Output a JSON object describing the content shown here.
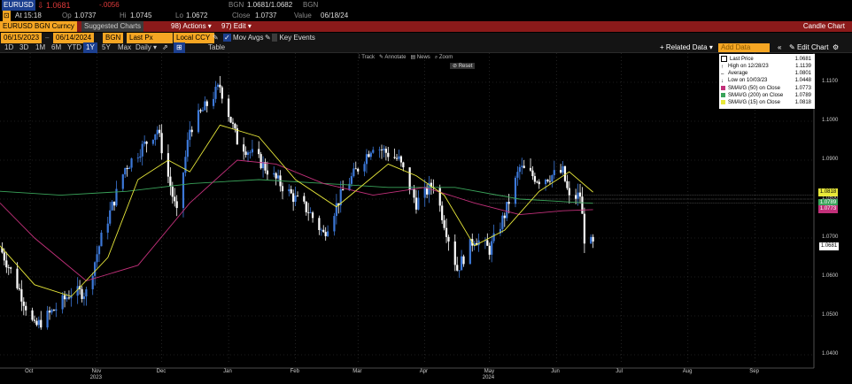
{
  "header": {
    "ticker": "EURUSD",
    "last": "1.0681",
    "change": "-.0056",
    "source": "BGN",
    "bid_ask": "1.0681/1.0682",
    "source2": "BGN",
    "time_label": "At 15:18",
    "open_label": "Op",
    "open": "1.0737",
    "high_label": "Hi",
    "high": "1.0745",
    "low_label": "Lo",
    "low": "1.0672",
    "close_label": "Close",
    "close": "1.0737",
    "value_label": "Value",
    "value_date": "06/18/24"
  },
  "toolbar": {
    "security": "EURUSD BGN Curncy",
    "suggested": "Suggested Charts",
    "actions": "Actions",
    "actions_num": "98)",
    "edit": "Edit",
    "edit_num": "97)",
    "chart_type": "Candle Chart"
  },
  "controls": {
    "start_date": "06/15/2023",
    "end_date": "06/14/2024",
    "source": "BGN",
    "field": "Last Px",
    "currency": "Local CCY",
    "mov_avgs": "Mov Avgs",
    "key_events": "Key Events",
    "related_data": "Related Data",
    "add_data": "Add Data",
    "edit_chart": "Edit Chart"
  },
  "periods": {
    "items": [
      "1D",
      "3D",
      "1M",
      "6M",
      "YTD",
      "1Y",
      "5Y",
      "Max"
    ],
    "selected": "1Y",
    "frequency": "Daily",
    "table": "Table"
  },
  "chart_tools": {
    "track": "Track",
    "annotate": "Annotate",
    "news": "News",
    "zoom": "Zoom",
    "reset": "Reset"
  },
  "legend": {
    "rows": [
      {
        "label": "Last Price",
        "value": "1.0681",
        "color": "#ffffff"
      },
      {
        "label": "High on 12/28/23",
        "value": "1.1139",
        "color": "#ffffff"
      },
      {
        "label": "Average",
        "value": "1.0801",
        "color": "#ffffff"
      },
      {
        "label": "Low on 10/03/23",
        "value": "1.0448",
        "color": "#ffffff"
      },
      {
        "label": "SMAVG (50) on Close",
        "value": "1.0773",
        "color": "#c2307a"
      },
      {
        "label": "SMAVG (200) on Close",
        "value": "1.0789",
        "color": "#3aa35a"
      },
      {
        "label": "SMAVG (15) on Close",
        "value": "1.0818",
        "color": "#e8e83a"
      }
    ]
  },
  "chart_data": {
    "type": "candlestick",
    "ylim": [
      1.0375,
      1.1175
    ],
    "y_ticks": [
      "1.1100",
      "1.1000",
      "1.0900",
      "1.0800",
      "1.0700",
      "1.0600",
      "1.0500",
      "1.0400"
    ],
    "y_tick_values": [
      1.11,
      1.1,
      1.09,
      1.08,
      1.07,
      1.06,
      1.05,
      1.04
    ],
    "x_ticks": [
      "Oct",
      "Nov",
      "Dec",
      "Jan",
      "Feb",
      "Mar",
      "Apr",
      "May",
      "Jun",
      "Jul",
      "Aug",
      "Sep"
    ],
    "x_tick_dates": [
      "2023-10-01",
      "2023-11-01",
      "2023-12-01",
      "2024-01-01",
      "2024-02-01",
      "2024-03-01",
      "2024-04-01",
      "2024-05-01",
      "2024-06-01",
      "2024-07-01",
      "2024-08-01",
      "2024-09-01"
    ],
    "x_years": [
      {
        "label": "2023",
        "date": "2023-11-01"
      },
      {
        "label": "2024",
        "date": "2024-05-01"
      }
    ],
    "xlim": [
      "2023-09-17",
      "2024-09-28"
    ],
    "price_key": [
      {
        "date": "2023-09-17",
        "v": 1.0675
      },
      {
        "date": "2023-09-25",
        "v": 1.058
      },
      {
        "date": "2023-10-03",
        "v": 1.047
      },
      {
        "date": "2023-10-13",
        "v": 1.052
      },
      {
        "date": "2023-10-20",
        "v": 1.056
      },
      {
        "date": "2023-10-27",
        "v": 1.056
      },
      {
        "date": "2023-11-03",
        "v": 1.07
      },
      {
        "date": "2023-11-14",
        "v": 1.088
      },
      {
        "date": "2023-11-29",
        "v": 1.098
      },
      {
        "date": "2023-12-08",
        "v": 1.076
      },
      {
        "date": "2023-12-14",
        "v": 1.098
      },
      {
        "date": "2023-12-28",
        "v": 1.109
      },
      {
        "date": "2024-01-05",
        "v": 1.095
      },
      {
        "date": "2024-01-15",
        "v": 1.09
      },
      {
        "date": "2024-01-23",
        "v": 1.085
      },
      {
        "date": "2024-02-01",
        "v": 1.08
      },
      {
        "date": "2024-02-07",
        "v": 1.077
      },
      {
        "date": "2024-02-14",
        "v": 1.071
      },
      {
        "date": "2024-02-23",
        "v": 1.082
      },
      {
        "date": "2024-03-08",
        "v": 1.094
      },
      {
        "date": "2024-03-20",
        "v": 1.09
      },
      {
        "date": "2024-03-28",
        "v": 1.079
      },
      {
        "date": "2024-04-05",
        "v": 1.084
      },
      {
        "date": "2024-04-16",
        "v": 1.062
      },
      {
        "date": "2024-04-24",
        "v": 1.07
      },
      {
        "date": "2024-05-01",
        "v": 1.067
      },
      {
        "date": "2024-05-08",
        "v": 1.076
      },
      {
        "date": "2024-05-15",
        "v": 1.088
      },
      {
        "date": "2024-05-24",
        "v": 1.085
      },
      {
        "date": "2024-06-04",
        "v": 1.087
      },
      {
        "date": "2024-06-07",
        "v": 1.08
      },
      {
        "date": "2024-06-12",
        "v": 1.081
      },
      {
        "date": "2024-06-14",
        "v": 1.07
      },
      {
        "date": "2024-06-18",
        "v": 1.0681
      }
    ],
    "sma50": [
      {
        "date": "2023-09-17",
        "v": 1.079
      },
      {
        "date": "2023-10-03",
        "v": 1.07
      },
      {
        "date": "2023-10-27",
        "v": 1.059
      },
      {
        "date": "2023-11-20",
        "v": 1.063
      },
      {
        "date": "2023-12-14",
        "v": 1.079
      },
      {
        "date": "2024-01-05",
        "v": 1.09
      },
      {
        "date": "2024-01-23",
        "v": 1.089
      },
      {
        "date": "2024-02-14",
        "v": 1.084
      },
      {
        "date": "2024-03-08",
        "v": 1.081
      },
      {
        "date": "2024-04-01",
        "v": 1.083
      },
      {
        "date": "2024-04-24",
        "v": 1.079
      },
      {
        "date": "2024-05-15",
        "v": 1.076
      },
      {
        "date": "2024-06-04",
        "v": 1.077
      },
      {
        "date": "2024-06-18",
        "v": 1.0773
      }
    ],
    "sma200": [
      {
        "date": "2023-09-17",
        "v": 1.082
      },
      {
        "date": "2023-10-15",
        "v": 1.081
      },
      {
        "date": "2023-11-15",
        "v": 1.082
      },
      {
        "date": "2023-12-15",
        "v": 1.084
      },
      {
        "date": "2024-01-15",
        "v": 1.085
      },
      {
        "date": "2024-02-15",
        "v": 1.084
      },
      {
        "date": "2024-03-15",
        "v": 1.083
      },
      {
        "date": "2024-04-15",
        "v": 1.083
      },
      {
        "date": "2024-05-15",
        "v": 1.08
      },
      {
        "date": "2024-06-18",
        "v": 1.0789
      }
    ],
    "sma15": [
      {
        "date": "2023-09-17",
        "v": 1.068
      },
      {
        "date": "2023-10-03",
        "v": 1.058
      },
      {
        "date": "2023-10-20",
        "v": 1.055
      },
      {
        "date": "2023-11-06",
        "v": 1.065
      },
      {
        "date": "2023-11-20",
        "v": 1.085
      },
      {
        "date": "2023-12-04",
        "v": 1.09
      },
      {
        "date": "2023-12-14",
        "v": 1.087
      },
      {
        "date": "2023-12-28",
        "v": 1.099
      },
      {
        "date": "2024-01-15",
        "v": 1.096
      },
      {
        "date": "2024-02-01",
        "v": 1.085
      },
      {
        "date": "2024-02-20",
        "v": 1.078
      },
      {
        "date": "2024-03-15",
        "v": 1.089
      },
      {
        "date": "2024-03-28",
        "v": 1.086
      },
      {
        "date": "2024-04-10",
        "v": 1.081
      },
      {
        "date": "2024-04-24",
        "v": 1.068
      },
      {
        "date": "2024-05-08",
        "v": 1.072
      },
      {
        "date": "2024-05-24",
        "v": 1.082
      },
      {
        "date": "2024-06-07",
        "v": 1.087
      },
      {
        "date": "2024-06-18",
        "v": 1.0818
      }
    ],
    "reference_levels": [
      1.079,
      1.08,
      1.081
    ],
    "right_axis_labels": [
      {
        "value": 1.0818,
        "text": "1.0818",
        "color": "#e8e83a"
      },
      {
        "value": 1.0789,
        "text": "1.0789",
        "color": "#3aa35a"
      },
      {
        "value": 1.0773,
        "text": "1.0773",
        "color": "#c2307a"
      },
      {
        "value": 1.0681,
        "text": "1.0681",
        "color": "#ffffff"
      }
    ],
    "colors": {
      "up": "#3c78d8",
      "down": "#ffffff",
      "sma50": "#c2307a",
      "sma200": "#3aa35a",
      "sma15": "#e8e83a"
    }
  }
}
